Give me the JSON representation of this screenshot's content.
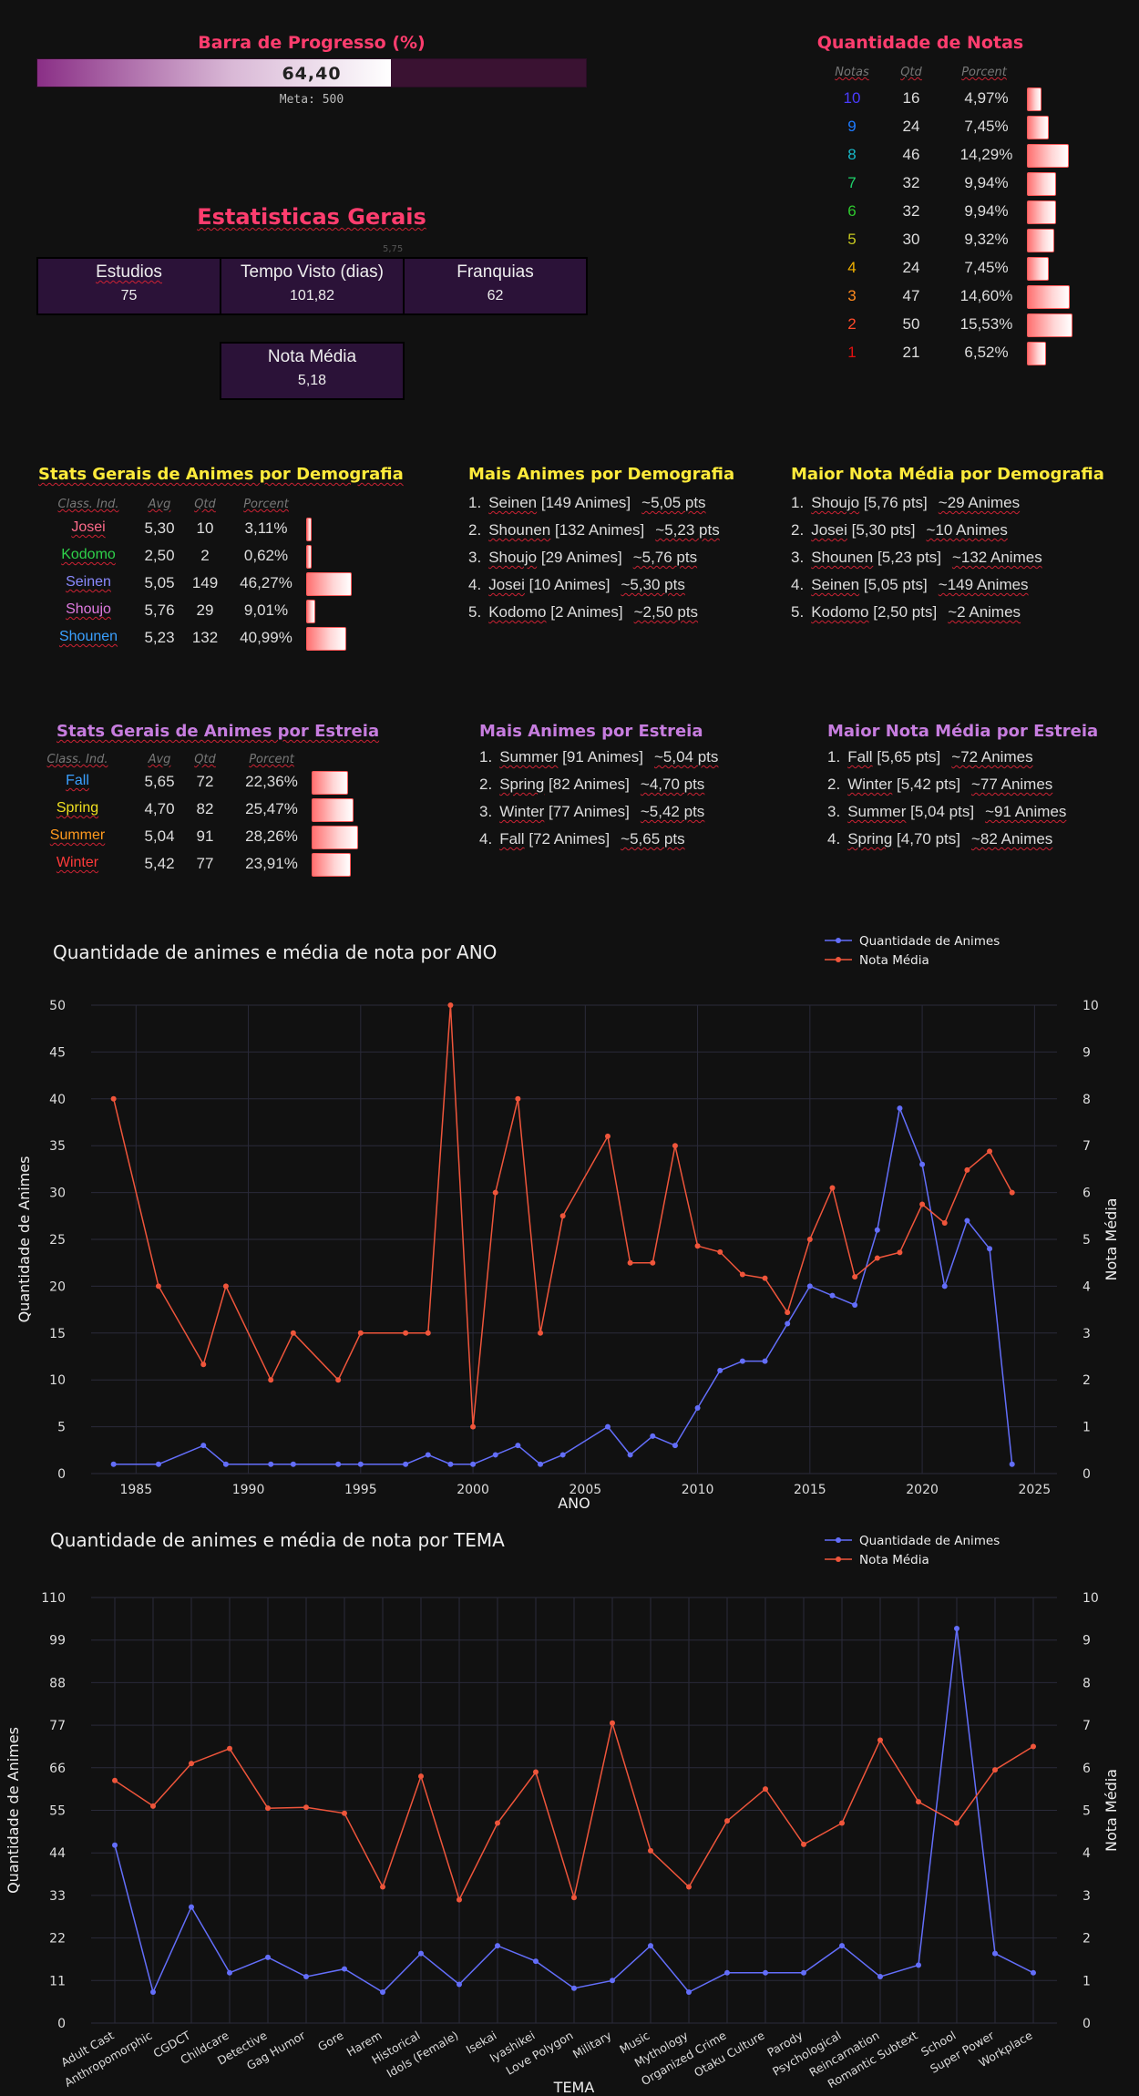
{
  "progress": {
    "title": "Barra de Progresso (%)",
    "value_label": "64,40",
    "fraction": 0.644,
    "meta_label": "Meta: 500"
  },
  "notas": {
    "title": "Quantidade de Notas",
    "headers": [
      "Notas",
      "Qtd",
      "Porcent"
    ],
    "rows": [
      {
        "nota": "10",
        "qtd": "16",
        "pct": "4,97%",
        "pct_value": 4.97,
        "color": "#4a3cff"
      },
      {
        "nota": "9",
        "qtd": "24",
        "pct": "7,45%",
        "pct_value": 7.45,
        "color": "#1e7bff"
      },
      {
        "nota": "8",
        "qtd": "46",
        "pct": "14,29%",
        "pct_value": 14.29,
        "color": "#18b8c8"
      },
      {
        "nota": "7",
        "qtd": "32",
        "pct": "9,94%",
        "pct_value": 9.94,
        "color": "#1ed26a"
      },
      {
        "nota": "6",
        "qtd": "32",
        "pct": "9,94%",
        "pct_value": 9.94,
        "color": "#2ec82e"
      },
      {
        "nota": "5",
        "qtd": "30",
        "pct": "9,32%",
        "pct_value": 9.32,
        "color": "#c6c820"
      },
      {
        "nota": "4",
        "qtd": "24",
        "pct": "7,45%",
        "pct_value": 7.45,
        "color": "#f0b000"
      },
      {
        "nota": "3",
        "qtd": "47",
        "pct": "14,60%",
        "pct_value": 14.6,
        "color": "#ff8a1e"
      },
      {
        "nota": "2",
        "qtd": "50",
        "pct": "15,53%",
        "pct_value": 15.53,
        "color": "#ff4a2a"
      },
      {
        "nota": "1",
        "qtd": "21",
        "pct": "6,52%",
        "pct_value": 6.52,
        "color": "#e01010"
      }
    ]
  },
  "gerais": {
    "title": "Estatisticas Gerais",
    "tiny_label": "5,75",
    "boxes": [
      {
        "label": "Estudios",
        "value": "75"
      },
      {
        "label": "Tempo Visto (dias)",
        "value": "101,82"
      },
      {
        "label": "Franquias",
        "value": "62"
      },
      {
        "label": "Nota Média",
        "value": "5,18"
      }
    ]
  },
  "demografia": {
    "stats_title": "Stats Gerais de Animes por Demografia",
    "headers": [
      "Class. Ind.",
      "Avg",
      "Qtd",
      "Porcent"
    ],
    "rows": [
      {
        "name": "Josei",
        "avg": "5,30",
        "qtd": "10",
        "pct": "3,11%",
        "pct_value": 3.11,
        "color": "#ff6a8a"
      },
      {
        "name": "Kodomo",
        "avg": "2,50",
        "qtd": "2",
        "pct": "0,62%",
        "pct_value": 0.62,
        "color": "#2ed14a"
      },
      {
        "name": "Seinen",
        "avg": "5,05",
        "qtd": "149",
        "pct": "46,27%",
        "pct_value": 46.27,
        "color": "#8a8aff"
      },
      {
        "name": "Shoujo",
        "avg": "5,76",
        "qtd": "29",
        "pct": "9,01%",
        "pct_value": 9.01,
        "color": "#e07ae0"
      },
      {
        "name": "Shounen",
        "avg": "5,23",
        "qtd": "132",
        "pct": "40,99%",
        "pct_value": 40.99,
        "color": "#3aa0ff"
      }
    ],
    "mais_title": "Mais Animes por Demografia",
    "mais": [
      {
        "num": "1.",
        "name": "Seinen",
        "detail": " [149 Animes]",
        "extra": "~5,05 pts"
      },
      {
        "num": "2.",
        "name": "Shounen",
        "detail": " [132 Animes]",
        "extra": "~5,23 pts"
      },
      {
        "num": "3.",
        "name": "Shoujo",
        "detail": " [29 Animes]",
        "extra": "~5,76 pts"
      },
      {
        "num": "4.",
        "name": "Josei",
        "detail": " [10 Animes]",
        "extra": "~5,30 pts"
      },
      {
        "num": "5.",
        "name": "Kodomo",
        "detail": " [2 Animes]",
        "extra": "~2,50 pts"
      }
    ],
    "maior_title": "Maior Nota Média por Demografia",
    "maior": [
      {
        "num": "1.",
        "name": "Shoujo",
        "detail": " [5,76 pts]",
        "extra": "~29 Animes"
      },
      {
        "num": "2.",
        "name": "Josei",
        "detail": " [5,30 pts]",
        "extra": "~10 Animes"
      },
      {
        "num": "3.",
        "name": "Shounen",
        "detail": " [5,23 pts]",
        "extra": "~132 Animes"
      },
      {
        "num": "4.",
        "name": "Seinen",
        "detail": " [5,05 pts]",
        "extra": "~149 Animes"
      },
      {
        "num": "5.",
        "name": "Kodomo",
        "detail": " [2,50 pts]",
        "extra": "~2 Animes"
      }
    ]
  },
  "estreia": {
    "stats_title": "Stats Gerais de Animes por Estreia",
    "headers": [
      "Class. Ind.",
      "Avg",
      "Qtd",
      "Porcent"
    ],
    "rows": [
      {
        "name": "Fall",
        "avg": "5,65",
        "qtd": "72",
        "pct": "22,36%",
        "pct_value": 22.36,
        "color": "#3aa0ff"
      },
      {
        "name": "Spring",
        "avg": "4,70",
        "qtd": "82",
        "pct": "25,47%",
        "pct_value": 25.47,
        "color": "#f0e020"
      },
      {
        "name": "Summer",
        "avg": "5,04",
        "qtd": "91",
        "pct": "28,26%",
        "pct_value": 28.26,
        "color": "#ff9a1e"
      },
      {
        "name": "Winter",
        "avg": "5,42",
        "qtd": "77",
        "pct": "23,91%",
        "pct_value": 23.91,
        "color": "#ff3a3a"
      }
    ],
    "mais_title": "Mais Animes por Estreia",
    "mais": [
      {
        "num": "1.",
        "name": "Summer",
        "detail": " [91 Animes]",
        "extra": "~5,04 pts"
      },
      {
        "num": "2.",
        "name": "Spring",
        "detail": " [82 Animes]",
        "extra": "~4,70 pts"
      },
      {
        "num": "3.",
        "name": "Winter",
        "detail": " [77 Animes]",
        "extra": "~5,42 pts"
      },
      {
        "num": "4.",
        "name": "Fall",
        "detail": " [72 Animes]",
        "extra": "~5,65 pts"
      }
    ],
    "maior_title": "Maior Nota Média por Estreia",
    "maior": [
      {
        "num": "1.",
        "name": "Fall",
        "detail": " [5,65 pts]",
        "extra": "~72 Animes"
      },
      {
        "num": "2.",
        "name": "Winter",
        "detail": " [5,42 pts]",
        "extra": "~77 Animes"
      },
      {
        "num": "3.",
        "name": "Summer",
        "detail": " [5,04 pts]",
        "extra": "~91 Animes"
      },
      {
        "num": "4.",
        "name": "Spring",
        "detail": " [4,70 pts]",
        "extra": "~82 Animes"
      }
    ]
  },
  "colors": {
    "qtd_series": "#636efa",
    "nota_series": "#ef553b",
    "grid": "#2a2a3a",
    "bg": "#111111"
  },
  "chart_data": [
    {
      "type": "line",
      "title": "Quantidade de animes e média de nota por ANO",
      "xlabel": "ANO",
      "ylabel": "Quantidade de Animes",
      "y2label": "Nota Média",
      "xlim": [
        1983,
        2026
      ],
      "ylim": [
        0,
        50
      ],
      "y2lim": [
        0,
        10
      ],
      "xticks": [
        1985,
        1990,
        1995,
        2000,
        2005,
        2010,
        2015,
        2020,
        2025
      ],
      "yticks": [
        0,
        5,
        10,
        15,
        20,
        25,
        30,
        35,
        40,
        45,
        50
      ],
      "y2ticks": [
        0,
        1,
        2,
        3,
        4,
        5,
        6,
        7,
        8,
        9,
        10
      ],
      "grid": true,
      "legend": "top-right",
      "series": [
        {
          "name": "Quantidade de Animes",
          "axis": "left",
          "x": [
            1984,
            1986,
            1988,
            1989,
            1991,
            1992,
            1994,
            1995,
            1997,
            1998,
            1999,
            2000,
            2001,
            2002,
            2003,
            2004,
            2006,
            2007,
            2008,
            2009,
            2010,
            2011,
            2012,
            2013,
            2014,
            2015,
            2016,
            2017,
            2018,
            2019,
            2020,
            2021,
            2022,
            2023,
            2024
          ],
          "values": [
            1,
            1,
            3,
            1,
            1,
            1,
            1,
            1,
            1,
            2,
            1,
            1,
            2,
            3,
            1,
            2,
            5,
            2,
            4,
            3,
            7,
            11,
            12,
            12,
            16,
            20,
            19,
            18,
            26,
            39,
            33,
            20,
            27,
            24,
            1
          ]
        },
        {
          "name": "Nota Média",
          "axis": "right",
          "x": [
            1984,
            1986,
            1988,
            1989,
            1991,
            1992,
            1994,
            1995,
            1997,
            1998,
            1999,
            2000,
            2001,
            2002,
            2003,
            2004,
            2006,
            2007,
            2008,
            2009,
            2010,
            2011,
            2012,
            2013,
            2014,
            2015,
            2016,
            2017,
            2018,
            2019,
            2020,
            2021,
            2022,
            2023,
            2024
          ],
          "values": [
            8,
            4,
            2.33,
            4,
            2,
            3,
            2,
            3,
            3,
            3,
            10,
            1,
            6,
            8,
            3,
            5.5,
            7.2,
            4.5,
            4.5,
            7,
            4.86,
            4.73,
            4.25,
            4.17,
            3.44,
            5,
            6.1,
            4.2,
            4.6,
            4.72,
            5.75,
            5.35,
            6.48,
            6.88,
            6
          ]
        }
      ]
    },
    {
      "type": "line",
      "title": "Quantidade de animes e média de nota por TEMA",
      "xlabel": "TEMA",
      "ylabel": "Quantidade de Animes",
      "y2label": "Nota Média",
      "ylim": [
        0,
        110
      ],
      "y2lim": [
        0,
        10
      ],
      "yticks": [
        0,
        11,
        22,
        33,
        44,
        55,
        66,
        77,
        88,
        99,
        110
      ],
      "y2ticks": [
        0,
        1,
        2,
        3,
        4,
        5,
        6,
        7,
        8,
        9,
        10
      ],
      "grid": true,
      "legend": "top-right",
      "categories": [
        "Adult Cast",
        "Anthropomorphic",
        "CGDCT",
        "Childcare",
        "Detective",
        "Gag Humor",
        "Gore",
        "Harem",
        "Historical",
        "Idols (Female)",
        "Isekai",
        "Iyashikei",
        "Love Polygon",
        "Military",
        "Music",
        "Mythology",
        "Organized Crime",
        "Otaku Culture",
        "Parody",
        "Psychological",
        "Reincarnation",
        "Romantic Subtext",
        "School",
        "Super Power",
        "Workplace"
      ],
      "series": [
        {
          "name": "Quantidade de Animes",
          "axis": "left",
          "values": [
            46,
            8,
            30,
            13,
            17,
            12,
            14,
            8,
            18,
            10,
            20,
            16,
            9,
            11,
            20,
            8,
            13,
            13,
            13,
            20,
            12,
            15,
            102,
            18,
            13
          ]
        },
        {
          "name": "Nota Média",
          "axis": "right",
          "values": [
            5.7,
            5.1,
            6.1,
            6.45,
            5.05,
            5.07,
            4.93,
            3.2,
            5.8,
            2.9,
            4.7,
            5.9,
            2.95,
            7.05,
            4.05,
            3.2,
            4.75,
            5.5,
            4.2,
            4.7,
            6.65,
            5.2,
            4.7,
            5.95,
            6.5
          ]
        }
      ]
    }
  ]
}
